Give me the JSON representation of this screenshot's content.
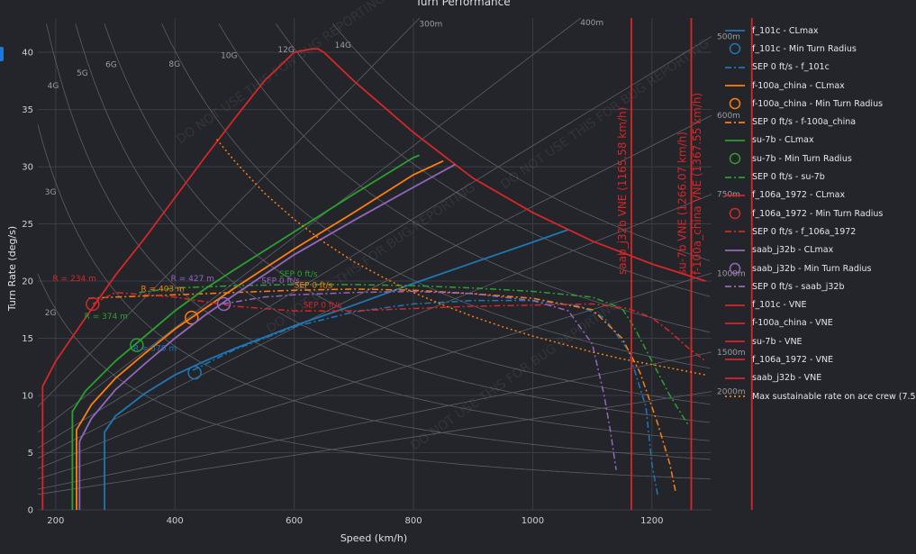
{
  "chart_data": {
    "type": "line",
    "title": "Turn Performance",
    "xlabel": "Speed (km/h)",
    "ylabel": "Turn Rate (deg/s)",
    "xlim": [
      170,
      1300
    ],
    "ylim": [
      0,
      43
    ],
    "xticks": [
      200,
      400,
      600,
      800,
      1000,
      1200
    ],
    "yticks": [
      0,
      5,
      10,
      15,
      20,
      25,
      30,
      35,
      40
    ],
    "grid": true,
    "legend_position": "right",
    "watermark": "DO NOT USE THIS FOR BUG REPORTING",
    "g_lines": [
      {
        "label": "2G",
        "g": 2
      },
      {
        "label": "3G",
        "g": 3
      },
      {
        "label": "4G",
        "g": 4
      },
      {
        "label": "5G",
        "g": 5
      },
      {
        "label": "6G",
        "g": 6
      },
      {
        "label": "8G",
        "g": 8
      },
      {
        "label": "10G",
        "g": 10
      },
      {
        "label": "12G",
        "g": 12
      },
      {
        "label": "14G",
        "g": 14
      }
    ],
    "radius_lines": [
      {
        "label": "300m",
        "r": 300
      },
      {
        "label": "400m",
        "r": 400
      },
      {
        "label": "500m",
        "r": 500
      },
      {
        "label": "600m",
        "r": 600
      },
      {
        "label": "750m",
        "r": 750
      },
      {
        "label": "1000m",
        "r": 1000
      },
      {
        "label": "1500m",
        "r": 1500
      },
      {
        "label": "2000m",
        "r": 2000
      }
    ],
    "series": [
      {
        "name": "f_101c - CLmax",
        "color": "#1f77b4",
        "dash": "solid",
        "x": [
          282,
          282,
          300,
          350,
          400,
          450,
          500,
          600,
          700,
          800,
          900,
          1000,
          1060
        ],
        "y": [
          0,
          6.8,
          8.2,
          10.2,
          11.8,
          13.0,
          14.1,
          16.1,
          17.9,
          19.8,
          21.6,
          23.4,
          24.5
        ]
      },
      {
        "name": "f_101c - Min Turn Radius",
        "color": "#1f77b4",
        "marker": "circle",
        "x": [
          433
        ],
        "y": [
          12.0
        ]
      },
      {
        "name": "SEP 0 ft/s - f_101c",
        "color": "#1f77b4",
        "dash": "dashdot",
        "x": [
          430,
          500,
          600,
          700,
          800,
          900,
          1000,
          1080,
          1120,
          1160,
          1190,
          1200,
          1210
        ],
        "y": [
          12.2,
          14.0,
          16.0,
          17.3,
          18.0,
          18.3,
          18.3,
          17.8,
          16.8,
          14.0,
          9.0,
          4.0,
          1.2
        ]
      },
      {
        "name": "f-100a_china - CLmax",
        "color": "#ff7f0e",
        "dash": "solid",
        "x": [
          235,
          235,
          260,
          300,
          350,
          400,
          450,
          500,
          600,
          700,
          800,
          850
        ],
        "y": [
          0,
          7.0,
          9.2,
          11.5,
          13.7,
          15.8,
          17.6,
          19.4,
          22.8,
          26.0,
          29.3,
          30.5
        ]
      },
      {
        "name": "f-100a_china - Min Turn Radius",
        "color": "#ff7f0e",
        "marker": "circle",
        "x": [
          428
        ],
        "y": [
          16.8
        ]
      },
      {
        "name": "SEP 0 ft/s - f-100a_china",
        "color": "#ff7f0e",
        "dash": "dashdot",
        "x": [
          255,
          300,
          400,
          500,
          600,
          700,
          800,
          900,
          1000,
          1100,
          1150,
          1180,
          1210,
          1230,
          1240
        ],
        "y": [
          18.5,
          18.6,
          18.8,
          19.0,
          19.2,
          19.3,
          19.2,
          18.9,
          18.5,
          17.5,
          15.0,
          12.0,
          7.5,
          4.0,
          1.5
        ]
      },
      {
        "name": "su-7b - CLmax",
        "color": "#2ca02c",
        "dash": "solid",
        "x": [
          228,
          228,
          250,
          300,
          350,
          400,
          450,
          500,
          600,
          700,
          800,
          810
        ],
        "y": [
          0,
          8.6,
          10.4,
          13.0,
          15.2,
          17.4,
          19.3,
          21.0,
          24.3,
          27.6,
          30.8,
          31.0
        ]
      },
      {
        "name": "su-7b - Min Turn Radius",
        "color": "#2ca02c",
        "marker": "circle",
        "x": [
          336
        ],
        "y": [
          14.4
        ]
      },
      {
        "name": "SEP 0 ft/s - su-7b",
        "color": "#2ca02c",
        "dash": "dashdot",
        "x": [
          340,
          400,
          500,
          600,
          700,
          800,
          900,
          1000,
          1100,
          1150,
          1170,
          1200,
          1230,
          1260
        ],
        "y": [
          19.0,
          19.4,
          19.6,
          19.7,
          19.7,
          19.6,
          19.4,
          19.1,
          18.6,
          17.6,
          16.0,
          13.0,
          10.0,
          7.5
        ]
      },
      {
        "name": "f_106a_1972 - CLmax",
        "color": "#d62728",
        "dash": "solid",
        "x": [
          178,
          178,
          200,
          250,
          300,
          350,
          400,
          450,
          500,
          550,
          600,
          630,
          640,
          650,
          700,
          800,
          900,
          1000,
          1100,
          1200,
          1290
        ],
        "y": [
          0,
          10.8,
          13.0,
          16.8,
          20.5,
          23.8,
          27.3,
          30.8,
          34.2,
          37.5,
          40.0,
          40.3,
          40.3,
          40.0,
          37.5,
          33.0,
          29.0,
          26.0,
          23.5,
          21.5,
          20.0
        ]
      },
      {
        "name": "f_106a_1972 - Min Turn Radius",
        "color": "#d62728",
        "marker": "circle",
        "x": [
          262
        ],
        "y": [
          18.0
        ]
      },
      {
        "name": "SEP 0 ft/s - f_106a_1972",
        "color": "#d62728",
        "dash": "dashdot",
        "x": [
          262,
          300,
          400,
          500,
          600,
          700,
          800,
          900,
          1000,
          1100,
          1160,
          1200,
          1230,
          1260,
          1290
        ],
        "y": [
          18.0,
          19.0,
          18.6,
          17.8,
          17.4,
          17.4,
          17.6,
          17.8,
          17.9,
          18.0,
          17.6,
          16.8,
          15.6,
          14.2,
          13.0
        ]
      },
      {
        "name": "saab_j32b - CLmax",
        "color": "#9467bd",
        "dash": "solid",
        "x": [
          240,
          240,
          260,
          300,
          350,
          400,
          450,
          500,
          600,
          700,
          800,
          870
        ],
        "y": [
          0,
          6.0,
          8.0,
          10.5,
          12.8,
          15.0,
          17.0,
          18.8,
          22.3,
          25.3,
          28.2,
          30.2
        ]
      },
      {
        "name": "saab_j32b - Min Turn Radius",
        "color": "#9467bd",
        "marker": "circle",
        "x": [
          482
        ],
        "y": [
          18.0
        ]
      },
      {
        "name": "SEP 0 ft/s - saab_j32b",
        "color": "#9467bd",
        "dash": "dashdot",
        "x": [
          480,
          550,
          600,
          700,
          800,
          900,
          1000,
          1060,
          1100,
          1120,
          1130,
          1140
        ],
        "y": [
          18.0,
          18.6,
          18.8,
          19.0,
          19.1,
          18.9,
          18.3,
          17.4,
          14.5,
          10.0,
          7.0,
          3.5
        ]
      },
      {
        "name": "f_101c - VNE",
        "color": "#d62728",
        "dash": "solid",
        "x": [],
        "y": []
      },
      {
        "name": "f-100a_china - VNE",
        "color": "#d62728",
        "dash": "solid",
        "x": [
          1367.55,
          1367.55
        ],
        "y": [
          0,
          43
        ]
      },
      {
        "name": "su-7b - VNE",
        "color": "#d62728",
        "dash": "solid",
        "x": [
          1266.07,
          1266.07
        ],
        "y": [
          0,
          43
        ]
      },
      {
        "name": "f_106a_1972 - VNE",
        "color": "#d62728",
        "dash": "solid",
        "x": [],
        "y": []
      },
      {
        "name": "saab_j32b - VNE",
        "color": "#d62728",
        "dash": "solid",
        "x": [
          1165.58,
          1165.58
        ],
        "y": [
          0,
          43
        ]
      },
      {
        "name": "Max sustainable rate on ace crew (7.5",
        "color": "#ff7f0e",
        "dash": "dot",
        "x": [
          470,
          500,
          550,
          600,
          650,
          700,
          750,
          800,
          850,
          900,
          950,
          1000,
          1050,
          1100,
          1150,
          1200,
          1250,
          1290
        ],
        "y": [
          32.4,
          30.5,
          27.7,
          25.4,
          23.4,
          21.7,
          20.3,
          19.0,
          17.9,
          16.9,
          16.0,
          15.2,
          14.5,
          13.8,
          13.2,
          12.7,
          12.2,
          11.8
        ]
      }
    ],
    "vne_labels": [
      {
        "text": "saab_j32b VNE (1165.58 km/h)",
        "x": 1165.58
      },
      {
        "text": "su-7b VNE (1266.07 km/h)",
        "x": 1266.07
      },
      {
        "text": "f-100a_china VNE (1367.55 km/h)",
        "x": 1367.55
      }
    ],
    "annotations": [
      {
        "text": "R = 234 m",
        "x": 195,
        "y": 20.0,
        "color": "#d62728"
      },
      {
        "text": "R = 403 m",
        "x": 343,
        "y": 19.1,
        "color": "#ff7f0e"
      },
      {
        "text": "R = 427 m",
        "x": 393,
        "y": 20.0,
        "color": "#9467bd"
      },
      {
        "text": "R = 374 m",
        "x": 248,
        "y": 16.7,
        "color": "#2ca02c"
      },
      {
        "text": "R = 579 m",
        "x": 330,
        "y": 13.9,
        "color": "#1f77b4"
      },
      {
        "text": "SEP 0 ft/s",
        "x": 575,
        "y": 20.4,
        "color": "#2ca02c"
      },
      {
        "text": "SEP 0 ft/s",
        "x": 600,
        "y": 19.4,
        "color": "#ff7f0e"
      },
      {
        "text": "SEP 0 ft/s",
        "x": 615,
        "y": 17.7,
        "color": "#d62728"
      },
      {
        "text": "SEP 0 ft/s",
        "x": 545,
        "y": 19.8,
        "color": "#9467bd"
      }
    ]
  }
}
